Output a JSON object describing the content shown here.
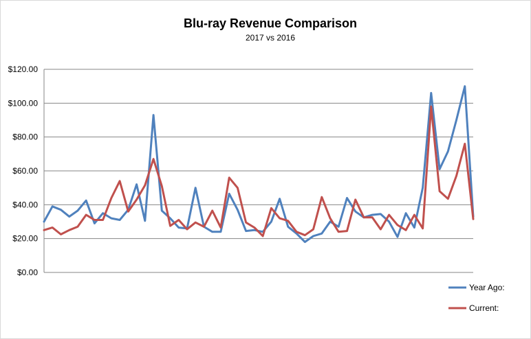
{
  "chart_data": {
    "type": "line",
    "title": "Blu-ray  Revenue Comparison",
    "subtitle": "2017 vs  2016",
    "xlabel": "",
    "ylabel": "",
    "ylim": [
      0,
      120
    ],
    "ytick_values": [
      0,
      20,
      40,
      60,
      80,
      100,
      120
    ],
    "ytick_labels": [
      "$0.00",
      "$20.00",
      "$40.00",
      "$60.00",
      "$80.00",
      "$100.00",
      "$120.00"
    ],
    "grid": "horizontal",
    "legend_position": "bottom-right",
    "series": [
      {
        "name": "Year Ago:",
        "color": "#4f81bd",
        "values": [
          30.0,
          39.0,
          37.0,
          33.0,
          36.5,
          42.5,
          29.0,
          35.0,
          32.0,
          31.0,
          37.0,
          52.0,
          30.5,
          93.0,
          36.5,
          32.0,
          26.5,
          26.0,
          50.0,
          27.0,
          24.0,
          24.0,
          46.5,
          37.0,
          24.5,
          25.0,
          24.0,
          30.0,
          43.5,
          27.0,
          23.0,
          18.0,
          21.5,
          23.0,
          30.0,
          27.0,
          44.0,
          36.0,
          32.5,
          34.0,
          34.5,
          30.0,
          21.0,
          35.0,
          26.5,
          50.0,
          106.0,
          61.0,
          71.5,
          90.0,
          110.0,
          33.0
        ]
      },
      {
        "name": "Current:",
        "color": "#c0504d",
        "values": [
          25.0,
          26.5,
          22.5,
          25.0,
          27.0,
          34.0,
          31.0,
          31.0,
          44.0,
          54.0,
          36.0,
          43.0,
          51.5,
          67.0,
          51.0,
          27.5,
          31.0,
          25.5,
          29.5,
          27.0,
          36.5,
          26.5,
          56.0,
          50.0,
          29.5,
          26.5,
          21.5,
          38.0,
          32.0,
          30.5,
          24.0,
          22.0,
          25.5,
          44.5,
          32.0,
          24.0,
          24.5,
          43.0,
          32.5,
          32.5,
          25.5,
          34.0,
          28.0,
          25.0,
          34.0,
          26.0,
          98.0,
          48.0,
          43.5,
          57.0,
          76.0,
          31.5
        ]
      }
    ]
  }
}
